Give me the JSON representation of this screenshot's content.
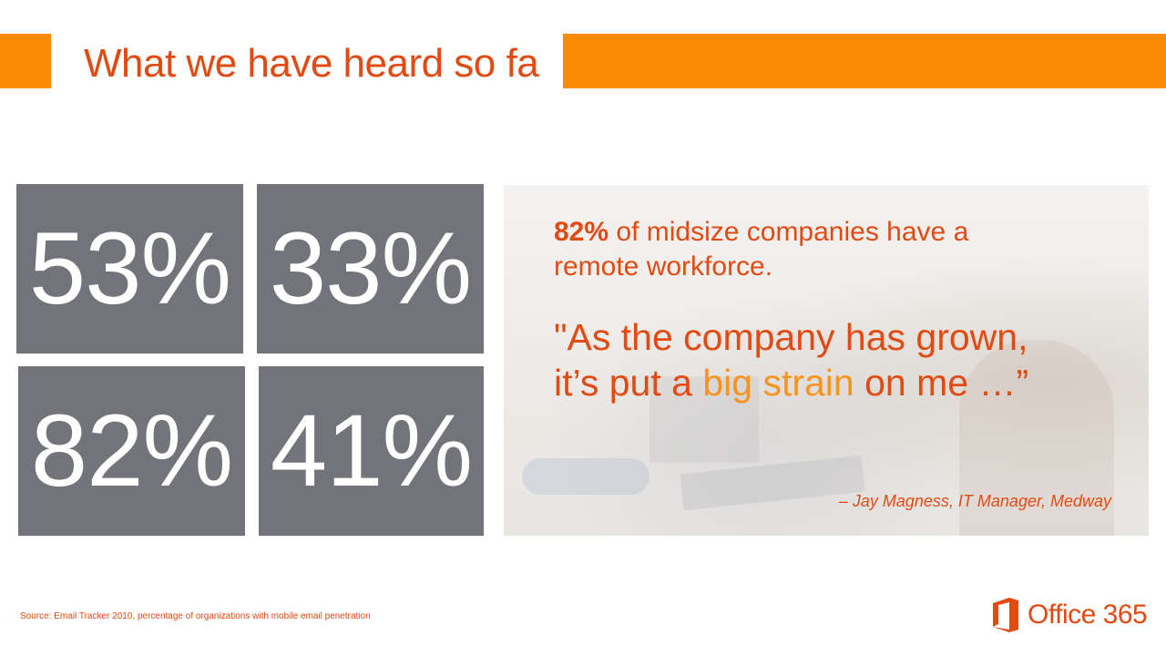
{
  "slide": {
    "title": "What we have heard so fa",
    "tiles": [
      {
        "value": "53%"
      },
      {
        "value": "33%"
      },
      {
        "value": "82%"
      },
      {
        "value": "41%"
      }
    ],
    "stat": {
      "bold": "82%",
      "rest": " of midsize companies have a remote workforce."
    },
    "quote": {
      "part1": "\"As the company has grown, it’s put a ",
      "highlight": "big strain",
      "part2": " on me …”"
    },
    "attribution": "– Jay Magness, IT Manager, Medway",
    "source": "Source: Email Tracker 2010, percentage of organizations with mobile email penetration",
    "logo_text": "Office 365",
    "logo_icon": "office-logo-icon"
  },
  "colors": {
    "accent_orange": "#fb8c06",
    "title_red": "#e24a12",
    "tile_gray": "#737479",
    "highlight_orange": "#f79420"
  }
}
